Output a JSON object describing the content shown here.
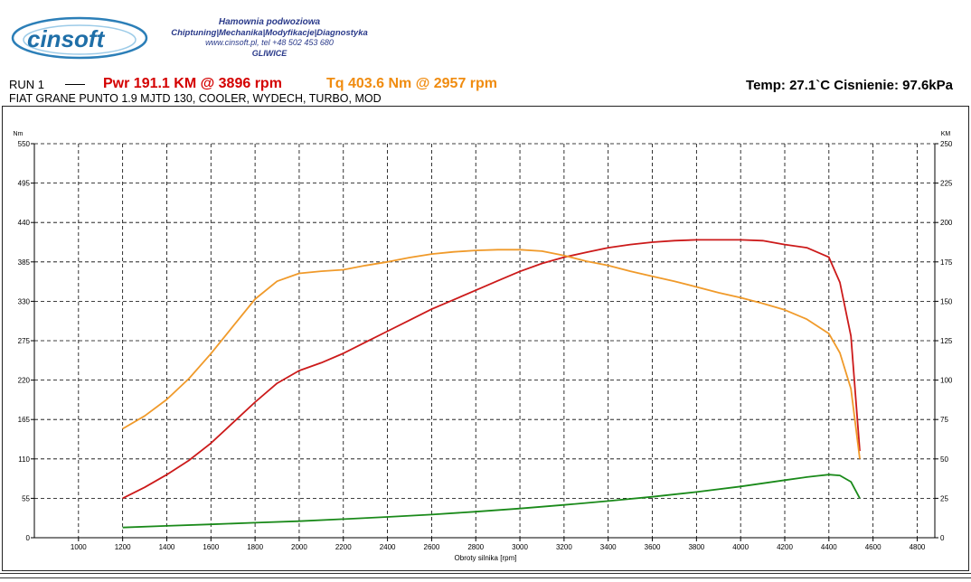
{
  "header": {
    "logo_text": "cinsoft",
    "tagline_1": "Hamownia podwoziowa",
    "tagline_2": "Chiptuning|Mechanika|Modyfikacje|Diagnostyka",
    "tagline_3": "www.cinsoft.pl, tel +48 502 453 680",
    "tagline_4": "GLIWICE"
  },
  "run": {
    "label": "RUN 1",
    "pwr": "Pwr  191.1 KM @ 3896 rpm",
    "tq": "Tq 403.6 Nm @ 2957 rpm",
    "vehicle": "FIAT GRANE PUNTO 1.9 MJTD 130, COOLER, WYDECH, TURBO, MOD",
    "conditions": "Temp: 27.1`C   Cisnienie: 97.6kPa"
  },
  "colors": {
    "power": "#cc1a1a",
    "torque": "#f09a2a",
    "loss": "#1a8a1a"
  },
  "chart_data": {
    "type": "line",
    "xlabel": "Obroty silnika [rpm]",
    "ylabel_left": "Nm",
    "ylabel_right": "KM",
    "xlim": [
      800,
      4880
    ],
    "ylim_left": [
      0,
      550
    ],
    "ylim_right": [
      0,
      250
    ],
    "x_ticks": [
      "1000",
      "1200",
      "1400",
      "1600",
      "1800",
      "2000",
      "2200",
      "2400",
      "2600",
      "2800",
      "3000",
      "3200",
      "3400",
      "3600",
      "3800",
      "4000",
      "4200",
      "4400",
      "4600",
      "4800"
    ],
    "y_left_ticks": [
      "0",
      "55",
      "110",
      "165",
      "220",
      "275",
      "330",
      "385",
      "440",
      "495",
      "550"
    ],
    "y_right_ticks": [
      "0",
      "25",
      "50",
      "75",
      "100",
      "125",
      "150",
      "175",
      "200",
      "225",
      "250"
    ],
    "grid": true,
    "series": [
      {
        "key": "power",
        "axis": "right",
        "x": [
          1200,
          1300,
          1400,
          1500,
          1600,
          1700,
          1800,
          1900,
          2000,
          2100,
          2200,
          2300,
          2400,
          2500,
          2600,
          2700,
          2800,
          2900,
          3000,
          3100,
          3200,
          3300,
          3400,
          3500,
          3600,
          3700,
          3800,
          3900,
          4000,
          4100,
          4200,
          4300,
          4400,
          4450,
          4500,
          4540
        ],
        "values": [
          25,
          32,
          40,
          49,
          60,
          73,
          86,
          98,
          106,
          111,
          117,
          124,
          131,
          138,
          145,
          151,
          157,
          163,
          169,
          174,
          178,
          181,
          184,
          186,
          187.5,
          188.5,
          189,
          189,
          189,
          188.5,
          186,
          184,
          178,
          162,
          128,
          55
        ]
      },
      {
        "key": "torque",
        "axis": "left",
        "x": [
          1200,
          1300,
          1400,
          1500,
          1600,
          1700,
          1800,
          1900,
          2000,
          2100,
          2200,
          2300,
          2400,
          2500,
          2600,
          2700,
          2800,
          2900,
          3000,
          3100,
          3200,
          3300,
          3400,
          3500,
          3600,
          3700,
          3800,
          3900,
          4000,
          4100,
          4200,
          4300,
          4400,
          4450,
          4500,
          4540
        ],
        "values": [
          152,
          170,
          193,
          222,
          257,
          295,
          333,
          358,
          369,
          372,
          374,
          380,
          385,
          391,
          396,
          399,
          401,
          402,
          402,
          400,
          394,
          386,
          380,
          372,
          365,
          358,
          350,
          342,
          335,
          327,
          318,
          305,
          285,
          258,
          208,
          110
        ]
      },
      {
        "key": "loss",
        "axis": "right",
        "x": [
          1200,
          1400,
          1600,
          1800,
          2000,
          2200,
          2400,
          2600,
          2800,
          3000,
          3200,
          3400,
          3600,
          3800,
          4000,
          4200,
          4300,
          4350,
          4400,
          4450,
          4500,
          4540
        ],
        "values": [
          6.5,
          7.5,
          8.5,
          9.5,
          10.5,
          11.8,
          13.2,
          14.7,
          16.5,
          18.5,
          20.8,
          23.3,
          26,
          29,
          32.5,
          36.5,
          38.5,
          39.3,
          40,
          39.5,
          35.5,
          25
        ]
      }
    ]
  }
}
